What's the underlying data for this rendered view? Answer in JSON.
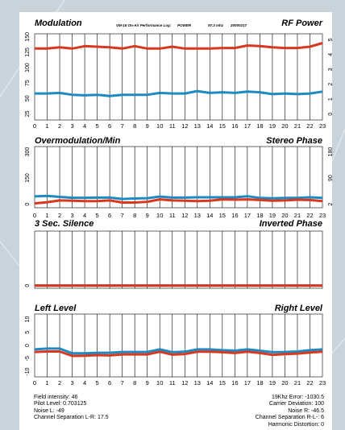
{
  "header": {
    "title": "VM-16 On-Air Performance Log:",
    "mode": "POWER",
    "frequency": "97.3 mhz",
    "date": "20000217"
  },
  "colors": {
    "red_series": "#d8391e",
    "blue_series": "#1e8ac4",
    "background": "#c9d3dc"
  },
  "chart_data": [
    {
      "type": "line",
      "title": "Modulation",
      "right_title": "RF Power",
      "x": [
        0,
        1,
        2,
        3,
        4,
        5,
        6,
        7,
        8,
        9,
        10,
        11,
        12,
        13,
        14,
        15,
        16,
        17,
        18,
        19,
        20,
        21,
        22,
        23
      ],
      "xticks": [
        "0",
        "1",
        "2",
        "3",
        "4",
        "5",
        "6",
        "7",
        "8",
        "9",
        "10",
        "11",
        "12",
        "13",
        "14",
        "15",
        "16",
        "17",
        "18",
        "19",
        "20",
        "21",
        "22",
        "23"
      ],
      "ylim": [
        15,
        155
      ],
      "yticks": [
        "25",
        "50",
        "75",
        "100",
        "125",
        "150"
      ],
      "ytick_values": [
        25,
        50,
        75,
        100,
        125,
        150
      ],
      "y2lim": [
        -0.4,
        5.4
      ],
      "y2ticks": [
        "0",
        "1",
        "2",
        "3",
        "4",
        "5"
      ],
      "y2tick_values": [
        0,
        1,
        2,
        3,
        4,
        5
      ],
      "series": [
        {
          "color": "red",
          "axis": "left",
          "values": [
            131,
            131,
            133,
            131,
            135,
            134,
            133,
            131,
            135,
            131,
            131,
            134,
            131,
            131,
            131,
            132,
            132,
            136,
            135,
            133,
            132,
            132,
            134,
            140
          ]
        },
        {
          "color": "blue",
          "axis": "left",
          "values": [
            58,
            58,
            59,
            56,
            55,
            56,
            54,
            56,
            56,
            56,
            59,
            58,
            58,
            62,
            59,
            60,
            59,
            61,
            60,
            57,
            58,
            57,
            58,
            61
          ]
        }
      ]
    },
    {
      "type": "line",
      "title": "Overmodulation/Min",
      "right_title": "Stereo Phase",
      "x": [
        0,
        1,
        2,
        3,
        4,
        5,
        6,
        7,
        8,
        9,
        10,
        11,
        12,
        13,
        14,
        15,
        16,
        17,
        18,
        19,
        20,
        21,
        22,
        23
      ],
      "xticks": [
        "0",
        "1",
        "2",
        "3",
        "4",
        "5",
        "6",
        "7",
        "8",
        "9",
        "10",
        "11",
        "12",
        "13",
        "14",
        "15",
        "16",
        "17",
        "18",
        "19",
        "20",
        "21",
        "22",
        "23"
      ],
      "ylim": [
        -20,
        330
      ],
      "yticks": [
        "0",
        "150",
        "300"
      ],
      "ytick_values": [
        0,
        150,
        300
      ],
      "y2ticks": [
        "2",
        "90",
        "180"
      ],
      "series": [
        {
          "color": "blue",
          "axis": "left",
          "values": [
            45,
            48,
            42,
            37,
            37,
            38,
            38,
            30,
            33,
            35,
            44,
            38,
            38,
            40,
            40,
            40,
            40,
            46,
            36,
            34,
            36,
            36,
            40,
            36
          ]
        },
        {
          "color": "red",
          "axis": "left",
          "values": [
            5,
            12,
            22,
            20,
            18,
            18,
            22,
            10,
            10,
            14,
            28,
            22,
            20,
            18,
            20,
            28,
            26,
            28,
            24,
            20,
            22,
            26,
            24,
            18
          ]
        }
      ]
    },
    {
      "type": "line",
      "title": "3 Sec. Silence",
      "right_title": "Inverted Phase",
      "x": [
        0,
        1,
        2,
        3,
        4,
        5,
        6,
        7,
        8,
        9,
        10,
        11,
        12,
        13,
        14,
        15,
        16,
        17,
        18,
        19,
        20,
        21,
        22,
        23
      ],
      "xticks": [
        "0",
        "1",
        "2",
        "3",
        "4",
        "5",
        "6",
        "7",
        "8",
        "9",
        "10",
        "11",
        "12",
        "13",
        "14",
        "15",
        "16",
        "17",
        "18",
        "19",
        "20",
        "21",
        "22",
        "23"
      ],
      "ylim": [
        -0.05,
        1
      ],
      "yticks": [
        "0"
      ],
      "ytick_values": [
        0
      ],
      "series": [
        {
          "color": "blue",
          "axis": "left",
          "values": [
            0,
            0,
            0,
            0,
            0,
            0,
            0,
            0,
            0,
            0,
            0,
            0,
            0,
            0,
            0,
            0,
            0,
            0,
            0,
            0,
            0,
            0,
            0,
            0
          ]
        },
        {
          "color": "red",
          "axis": "left",
          "values": [
            0,
            0,
            0,
            0,
            0,
            0,
            0,
            0,
            0,
            0,
            0,
            0,
            0,
            0,
            0,
            0,
            0,
            0,
            0,
            0,
            0,
            0,
            0,
            0
          ]
        }
      ]
    },
    {
      "type": "line",
      "title": "Left Level",
      "right_title": "Right Level",
      "x": [
        0,
        1,
        2,
        3,
        4,
        5,
        6,
        7,
        8,
        9,
        10,
        11,
        12,
        13,
        14,
        15,
        16,
        17,
        18,
        19,
        20,
        21,
        22,
        23
      ],
      "xticks": [
        "0",
        "1",
        "2",
        "3",
        "4",
        "5",
        "6",
        "7",
        "8",
        "9",
        "10",
        "11",
        "12",
        "13",
        "14",
        "15",
        "16",
        "17",
        "18",
        "19",
        "20",
        "21",
        "22",
        "23"
      ],
      "ylim": [
        -12,
        12
      ],
      "yticks": [
        "-10",
        "-5",
        "0",
        "5",
        "10"
      ],
      "ytick_values": [
        -10,
        -5,
        0,
        5,
        10
      ],
      "series": [
        {
          "color": "blue",
          "axis": "left",
          "values": [
            -1.5,
            -1.2,
            -1.2,
            -3,
            -3,
            -2.8,
            -2.8,
            -2.5,
            -2.5,
            -2.5,
            -1.5,
            -2.6,
            -2.4,
            -1.5,
            -1.5,
            -1.8,
            -2,
            -1.5,
            -2,
            -2.6,
            -2.5,
            -2.3,
            -1.8,
            -1.5
          ]
        },
        {
          "color": "red",
          "axis": "left",
          "values": [
            -2.5,
            -2.3,
            -2.3,
            -4,
            -3.9,
            -3.7,
            -3.8,
            -3.4,
            -3.4,
            -3.4,
            -2.4,
            -3.5,
            -3.3,
            -2.4,
            -2.4,
            -2.6,
            -2.9,
            -2.4,
            -2.9,
            -3.6,
            -3.3,
            -3.1,
            -2.7,
            -2.4
          ]
        }
      ]
    }
  ],
  "footer": {
    "left": [
      "Field intensity: 46",
      "Pilot Level: 0.703125",
      "Noise L: -49",
      "Channel Separation L-R: 17.5"
    ],
    "right": [
      "19Khz Error: -1030.5",
      "Carrier Deviation: 100",
      "Noise R: -46.5",
      "Channel Separation R-L-: 6",
      "Harmonic Distortion: 0"
    ]
  }
}
